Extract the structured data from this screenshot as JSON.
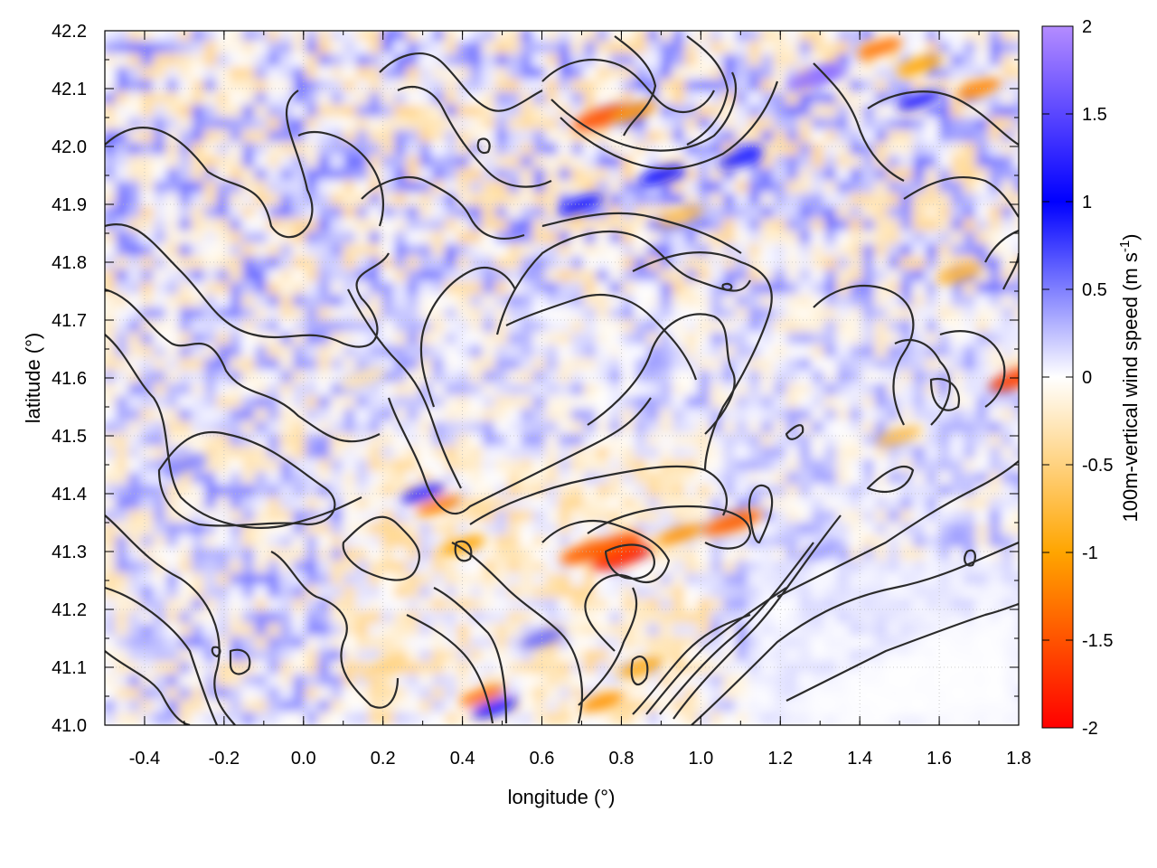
{
  "chart_data": {
    "type": "heatmap",
    "title": "",
    "xlabel": "longitude (°)",
    "ylabel": "latitude (°)",
    "colorbar_label": "100m-vertical wind speed (m s",
    "colorbar_label_superscript": "-1",
    "colorbar_label_suffix": ")",
    "xlim": [
      -0.5,
      1.8
    ],
    "ylim": [
      41.0,
      42.2
    ],
    "clim": [
      -2,
      2
    ],
    "x_ticks": [
      -0.4,
      -0.2,
      0.0,
      0.2,
      0.4,
      0.6,
      0.8,
      1.0,
      1.2,
      1.4,
      1.6,
      1.8
    ],
    "x_tick_labels": [
      "-0.4",
      "-0.2",
      "0.0",
      "0.2",
      "0.4",
      "0.6",
      "0.8",
      "1.0",
      "1.2",
      "1.4",
      "1.6",
      "1.8"
    ],
    "y_ticks": [
      41.0,
      41.1,
      41.2,
      41.3,
      41.4,
      41.5,
      41.6,
      41.7,
      41.8,
      41.9,
      42.0,
      42.1,
      42.2
    ],
    "y_tick_labels": [
      "41.0",
      "41.1",
      "41.2",
      "41.3",
      "41.4",
      "41.5",
      "41.6",
      "41.7",
      "41.8",
      "41.9",
      "42.0",
      "42.1",
      "42.2"
    ],
    "colorbar_ticks": [
      -2,
      -1.5,
      -1,
      -0.5,
      0,
      0.5,
      1,
      1.5,
      2
    ],
    "colorbar_tick_labels": [
      "-2",
      "-1.5",
      "-1",
      "-0.5",
      "0",
      "0.5",
      "1",
      "1.5",
      "2"
    ],
    "colormap": [
      {
        "value": -2,
        "color": "#ff0000"
      },
      {
        "value": -1,
        "color": "#ffa500"
      },
      {
        "value": 0,
        "color": "#ffffff"
      },
      {
        "value": 1,
        "color": "#0000ff"
      },
      {
        "value": 2,
        "color": "#b48cff"
      }
    ],
    "grid": true,
    "contours": "terrain elevation isolines (black)",
    "features": [
      {
        "lon": 0.8,
        "lat": 41.29,
        "value": -1.8
      },
      {
        "lon": 0.78,
        "lat": 41.31,
        "value": -1.5
      },
      {
        "lon": 0.72,
        "lat": 41.3,
        "value": -1.4
      },
      {
        "lon": 1.08,
        "lat": 41.35,
        "value": -1.4
      },
      {
        "lon": 0.95,
        "lat": 41.33,
        "value": -1.1
      },
      {
        "lon": 0.34,
        "lat": 41.38,
        "value": -1.2
      },
      {
        "lon": 0.4,
        "lat": 41.31,
        "value": -1.0
      },
      {
        "lon": 0.3,
        "lat": 41.4,
        "value": 1.3
      },
      {
        "lon": 0.75,
        "lat": 42.05,
        "value": -1.5
      },
      {
        "lon": 0.83,
        "lat": 42.06,
        "value": -1.1
      },
      {
        "lon": 1.29,
        "lat": 42.12,
        "value": 1.8
      },
      {
        "lon": 1.45,
        "lat": 42.17,
        "value": -1.3
      },
      {
        "lon": 1.55,
        "lat": 42.14,
        "value": -1.0
      },
      {
        "lon": 1.7,
        "lat": 42.1,
        "value": -1.2
      },
      {
        "lon": 1.8,
        "lat": 41.6,
        "value": -1.6
      },
      {
        "lon": 1.65,
        "lat": 41.78,
        "value": -0.8
      },
      {
        "lon": 1.5,
        "lat": 41.5,
        "value": -0.7
      },
      {
        "lon": 0.95,
        "lat": 41.88,
        "value": -0.7
      },
      {
        "lon": 0.7,
        "lat": 41.9,
        "value": 1.1
      },
      {
        "lon": 0.9,
        "lat": 41.95,
        "value": 1.1
      },
      {
        "lon": 1.1,
        "lat": 41.98,
        "value": 0.9
      },
      {
        "lon": 1.55,
        "lat": 42.08,
        "value": 1.2
      },
      {
        "lon": 0.45,
        "lat": 41.05,
        "value": -1.3
      },
      {
        "lon": 0.48,
        "lat": 41.03,
        "value": 1.1
      },
      {
        "lon": 0.75,
        "lat": 41.04,
        "value": -1.1
      },
      {
        "lon": 0.85,
        "lat": 41.1,
        "value": -0.9
      },
      {
        "lon": 0.6,
        "lat": 41.15,
        "value": 0.6
      },
      {
        "lon": 0.2,
        "lat": 41.1,
        "value": -0.5
      },
      {
        "lon": 0.15,
        "lat": 41.6,
        "value": -0.3
      },
      {
        "lon": -0.3,
        "lat": 41.45,
        "value": 0.5
      },
      {
        "lon": 1.3,
        "lat": 41.3,
        "value": 0.4
      },
      {
        "lon": 1.5,
        "lat": 41.1,
        "value": 0.05
      }
    ]
  }
}
